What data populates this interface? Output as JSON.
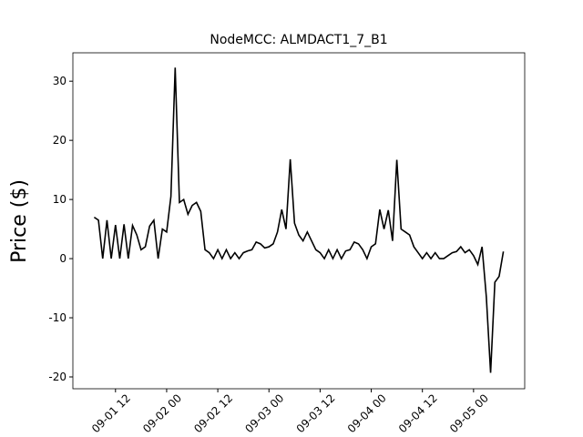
{
  "chart_data": {
    "type": "line",
    "title": "NodeMCC: ALMDACT1_7_B1",
    "y_label": "Price ($)",
    "x": [
      "09-01 07",
      "09-01 08",
      "09-01 09",
      "09-01 10",
      "09-01 11",
      "09-01 12",
      "09-01 13",
      "09-01 14",
      "09-01 15",
      "09-01 16",
      "09-01 17",
      "09-01 18",
      "09-01 19",
      "09-01 20",
      "09-01 21",
      "09-01 22",
      "09-01 23",
      "09-02 00",
      "09-02 01",
      "09-02 02",
      "09-02 03",
      "09-02 04",
      "09-02 05",
      "09-02 06",
      "09-02 07",
      "09-02 08",
      "09-02 09",
      "09-02 10",
      "09-02 11",
      "09-02 12",
      "09-02 13",
      "09-02 14",
      "09-02 15",
      "09-02 16",
      "09-02 17",
      "09-02 18",
      "09-02 19",
      "09-02 20",
      "09-02 21",
      "09-02 22",
      "09-02 23",
      "09-03 00",
      "09-03 01",
      "09-03 02",
      "09-03 03",
      "09-03 04",
      "09-03 05",
      "09-03 06",
      "09-03 07",
      "09-03 08",
      "09-03 09",
      "09-03 10",
      "09-03 11",
      "09-03 12",
      "09-03 13",
      "09-03 14",
      "09-03 15",
      "09-03 16",
      "09-03 17",
      "09-03 18",
      "09-03 19",
      "09-03 20",
      "09-03 21",
      "09-03 22",
      "09-03 23",
      "09-04 00",
      "09-04 01",
      "09-04 02",
      "09-04 03",
      "09-04 04",
      "09-04 05",
      "09-04 06",
      "09-04 07",
      "09-04 08",
      "09-04 09",
      "09-04 10",
      "09-04 11",
      "09-04 12",
      "09-04 13",
      "09-04 14",
      "09-04 15",
      "09-04 16",
      "09-04 17",
      "09-04 18",
      "09-04 19",
      "09-04 20",
      "09-04 21",
      "09-04 22",
      "09-04 23",
      "09-05 00",
      "09-05 01",
      "09-05 02",
      "09-05 03",
      "09-05 04",
      "09-05 05",
      "09-05 06",
      "09-05 07"
    ],
    "series": [
      {
        "color": "#000000",
        "values": [
          7,
          6.5,
          0,
          6.5,
          0,
          5.7,
          0,
          5.8,
          0,
          5.6,
          4,
          1.5,
          2,
          5.5,
          6.5,
          0,
          5,
          4.5,
          10.5,
          32.3,
          9.5,
          10,
          7.5,
          9,
          9.5,
          8,
          1.5,
          1,
          0,
          1.5,
          0,
          1.5,
          0,
          1,
          0,
          1,
          1.3,
          1.5,
          2.8,
          2.5,
          1.8,
          2,
          2.5,
          4.5,
          8.3,
          5,
          16.8,
          6,
          4,
          3,
          4.5,
          3,
          1.5,
          1,
          0,
          1.5,
          0,
          1.5,
          0,
          1.3,
          1.5,
          2.8,
          2.5,
          1.5,
          0,
          2,
          2.5,
          8.3,
          5,
          8.2,
          3,
          16.7,
          5,
          4.5,
          4,
          2,
          1,
          0,
          1,
          0,
          1,
          0,
          0,
          0.5,
          1,
          1.2,
          2,
          1,
          1.5,
          0.5,
          -1,
          2,
          -6.5,
          -19.3,
          -4,
          -3,
          1.2
        ]
      }
    ],
    "xlim": [
      "09-01 02",
      "09-05 12"
    ],
    "xticks": [
      "09-01 12",
      "09-02 00",
      "09-02 12",
      "09-03 00",
      "09-03 12",
      "09-04 00",
      "09-04 12",
      "09-05 00"
    ],
    "ylim": [
      -22,
      34.8
    ],
    "yticks": [
      -20,
      -10,
      0,
      10,
      20,
      30
    ]
  }
}
